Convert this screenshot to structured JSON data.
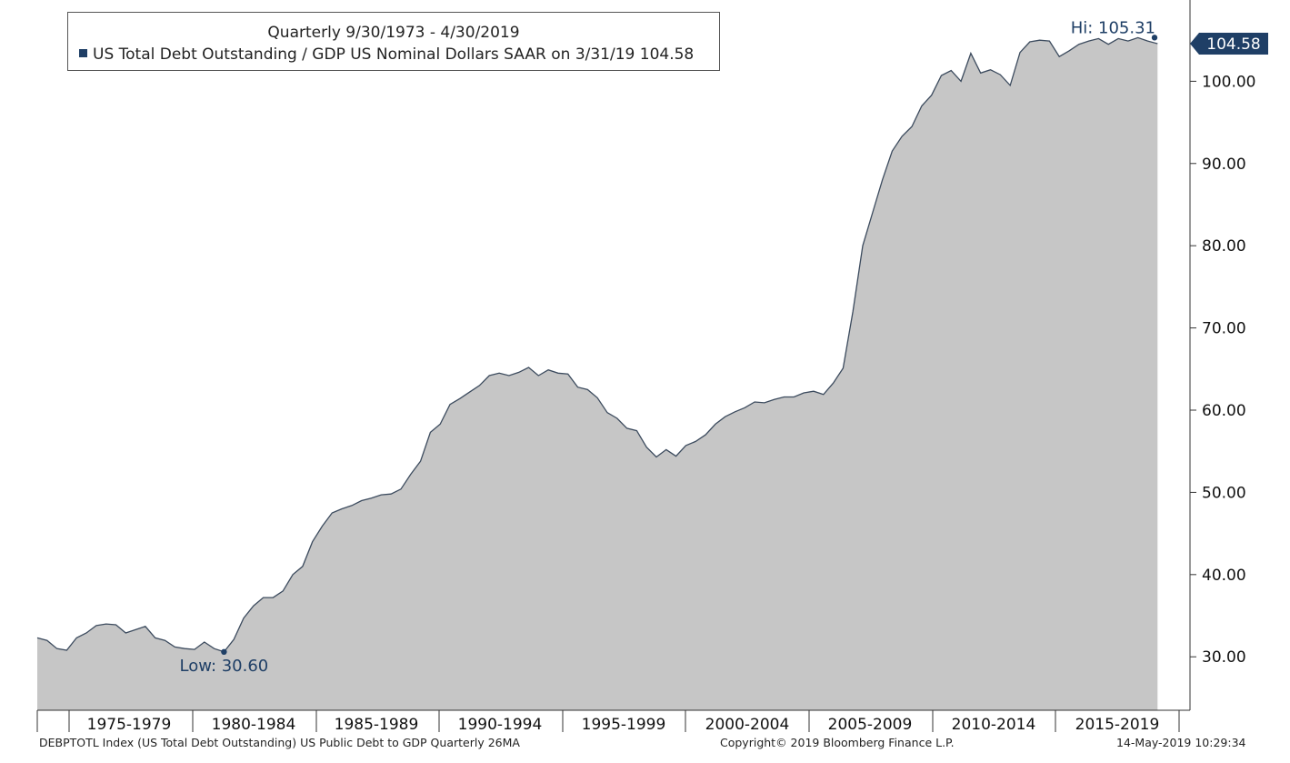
{
  "legend": {
    "title": "Quarterly 9/30/1973 - 4/30/2019",
    "entry": "US Total Debt Outstanding / GDP US Nominal Dollars SAAR on 3/31/19 104.58"
  },
  "footer": {
    "left": "DEBPTOTL Index (US Total Debt Outstanding) US Public Debt to GDP  Quarterly 26MA",
    "center": "Copyright© 2019 Bloomberg Finance L.P.",
    "right": "14-May-2019 10:29:34"
  },
  "colors": {
    "area_fill": "#c6c6c6",
    "line": "#3c4b5e",
    "accent": "#1f3f66"
  },
  "chart_data": {
    "type": "area",
    "title": "Quarterly 9/30/1973 - 4/30/2019",
    "xlabel": "",
    "ylabel": "",
    "x_range": [
      1973.6,
      2019.3
    ],
    "ylim": [
      23.5,
      109
    ],
    "y_axis_side": "right",
    "grid": false,
    "legend_position": "top-left",
    "y_ticks": [
      30,
      40,
      50,
      60,
      70,
      80,
      90,
      100
    ],
    "y_tick_labels": [
      "30.00",
      "40.00",
      "50.00",
      "60.00",
      "70.00",
      "80.00",
      "90.00",
      "100.00"
    ],
    "x_period_labels": [
      "1975-1979",
      "1980-1984",
      "1985-1989",
      "1990-1994",
      "1995-1999",
      "2000-2004",
      "2005-2009",
      "2010-2014",
      "2015-2019"
    ],
    "series": [
      {
        "name": "US Total Debt Outstanding / GDP US Nominal Dollars SAAR",
        "x": [
          1973.6,
          1974.0,
          1974.4,
          1974.8,
          1975.2,
          1975.6,
          1976.0,
          1976.4,
          1976.8,
          1977.2,
          1977.6,
          1978.0,
          1978.4,
          1978.8,
          1979.2,
          1979.6,
          1980.0,
          1980.4,
          1980.8,
          1981.2,
          1981.6,
          1982.0,
          1982.4,
          1982.8,
          1983.2,
          1983.6,
          1984.0,
          1984.4,
          1984.8,
          1985.2,
          1985.6,
          1986.0,
          1986.4,
          1986.8,
          1987.2,
          1987.6,
          1988.0,
          1988.4,
          1988.8,
          1989.2,
          1989.6,
          1990.0,
          1990.4,
          1990.8,
          1991.2,
          1991.6,
          1992.0,
          1992.4,
          1992.8,
          1993.2,
          1993.6,
          1994.0,
          1994.4,
          1994.8,
          1995.2,
          1995.6,
          1996.0,
          1996.4,
          1996.8,
          1997.2,
          1997.6,
          1998.0,
          1998.4,
          1998.8,
          1999.2,
          1999.6,
          2000.0,
          2000.4,
          2000.8,
          2001.2,
          2001.6,
          2002.0,
          2002.4,
          2002.8,
          2003.2,
          2003.6,
          2004.0,
          2004.4,
          2004.8,
          2005.2,
          2005.6,
          2006.0,
          2006.4,
          2006.8,
          2007.2,
          2007.6,
          2008.0,
          2008.4,
          2008.8,
          2009.2,
          2009.6,
          2010.0,
          2010.4,
          2010.8,
          2011.2,
          2011.6,
          2012.0,
          2012.4,
          2012.8,
          2013.2,
          2013.6,
          2014.0,
          2014.4,
          2014.8,
          2015.2,
          2015.6,
          2016.0,
          2016.4,
          2016.8,
          2017.2,
          2017.6,
          2018.0,
          2018.4,
          2018.8,
          2019.2
        ],
        "values": [
          32.3,
          32.0,
          31.0,
          30.8,
          32.3,
          32.9,
          33.8,
          34.0,
          33.9,
          32.9,
          33.3,
          33.7,
          32.3,
          32.0,
          31.2,
          31.0,
          30.9,
          31.8,
          31.0,
          30.6,
          32.1,
          34.7,
          36.2,
          37.2,
          37.2,
          38.0,
          40.0,
          41.0,
          44.0,
          45.9,
          47.5,
          48.0,
          48.4,
          49.0,
          49.3,
          49.7,
          49.8,
          50.4,
          52.2,
          53.8,
          57.3,
          58.3,
          60.7,
          61.4,
          62.2,
          63.0,
          64.2,
          64.5,
          64.2,
          64.6,
          65.2,
          64.2,
          64.9,
          64.5,
          64.4,
          62.8,
          62.5,
          61.5,
          59.7,
          59.0,
          57.8,
          57.5,
          55.5,
          54.3,
          55.2,
          54.4,
          55.7,
          56.2,
          57.0,
          58.3,
          59.2,
          59.8,
          60.3,
          61.0,
          60.9,
          61.3,
          61.6,
          61.6,
          62.1,
          62.3,
          61.9,
          63.3,
          65.1,
          72.0,
          80.0,
          84.0,
          88.0,
          91.5,
          93.3,
          94.5,
          97.0,
          98.3,
          100.7,
          101.3,
          100.0,
          103.4,
          101.0,
          101.4,
          100.8,
          99.5,
          103.5,
          104.8,
          105.0,
          104.9,
          103.0,
          103.7,
          104.5,
          104.9,
          105.2,
          104.5,
          105.2,
          104.9,
          105.31,
          104.9,
          104.58
        ]
      }
    ],
    "annotations": {
      "low": {
        "label": "Low: 30.60",
        "x": 1981.2,
        "value": 30.6
      },
      "high": {
        "label": "Hi: 105.31",
        "x": 2018.8,
        "value": 105.31
      },
      "last_value": {
        "label": "104.58",
        "value": 104.58
      }
    }
  }
}
